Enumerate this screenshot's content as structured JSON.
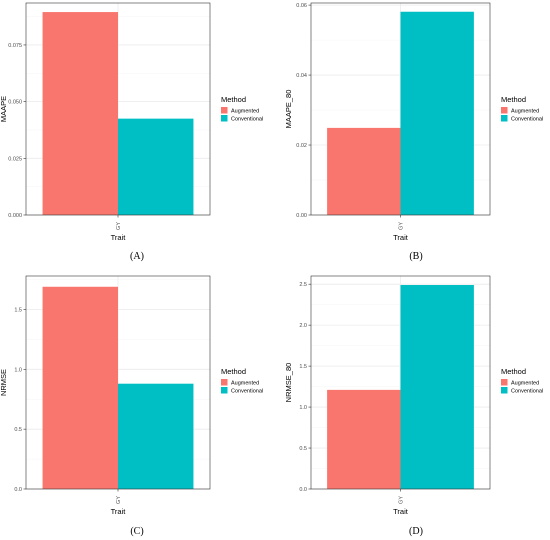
{
  "chart_data": [
    {
      "type": "bar",
      "panel_label": "(A)",
      "categories": [
        "GY"
      ],
      "xlabel": "Trait",
      "ylabel": "MAAPE",
      "ylim": [
        0,
        0.0935
      ],
      "yticks": [
        "0.000",
        "0.025",
        "0.050",
        "0.075"
      ],
      "grid": true,
      "legend": {
        "title": "Method",
        "position": "right"
      },
      "series": [
        {
          "name": "Augmented",
          "values": [
            0.0895
          ],
          "color": "#F8766D"
        },
        {
          "name": "Conventional",
          "values": [
            0.0425
          ],
          "color": "#00BFC4"
        }
      ]
    },
    {
      "type": "bar",
      "panel_label": "(B)",
      "categories": [
        "GY"
      ],
      "xlabel": "Trait",
      "ylabel": "MAAPE_80",
      "ylim": [
        0,
        0.0606
      ],
      "yticks": [
        "0.00",
        "0.02",
        "0.04",
        "0.06"
      ],
      "grid": true,
      "legend": {
        "title": "Method",
        "position": "right"
      },
      "series": [
        {
          "name": "Augmented",
          "values": [
            0.0249
          ],
          "color": "#F8766D"
        },
        {
          "name": "Conventional",
          "values": [
            0.0581
          ],
          "color": "#00BFC4"
        }
      ]
    },
    {
      "type": "bar",
      "panel_label": "(C)",
      "categories": [
        "GY"
      ],
      "xlabel": "Trait",
      "ylabel": "NRMSE",
      "ylim": [
        0,
        1.78
      ],
      "yticks": [
        "0.0",
        "0.5",
        "1.0",
        "1.5"
      ],
      "grid": true,
      "legend": {
        "title": "Method",
        "position": "right"
      },
      "series": [
        {
          "name": "Augmented",
          "values": [
            1.69
          ],
          "color": "#F8766D"
        },
        {
          "name": "Conventional",
          "values": [
            0.88
          ],
          "color": "#00BFC4"
        }
      ]
    },
    {
      "type": "bar",
      "panel_label": "(D)",
      "categories": [
        "GY"
      ],
      "xlabel": "Trait",
      "ylabel": "NRMSE_80",
      "ylim": [
        0,
        2.6
      ],
      "yticks": [
        "0.0",
        "0.5",
        "1.0",
        "1.5",
        "2.0",
        "2.5"
      ],
      "grid": true,
      "legend": {
        "title": "Method",
        "position": "right"
      },
      "series": [
        {
          "name": "Augmented",
          "values": [
            1.21
          ],
          "color": "#F8766D"
        },
        {
          "name": "Conventional",
          "values": [
            2.49
          ],
          "color": "#00BFC4"
        }
      ]
    }
  ]
}
